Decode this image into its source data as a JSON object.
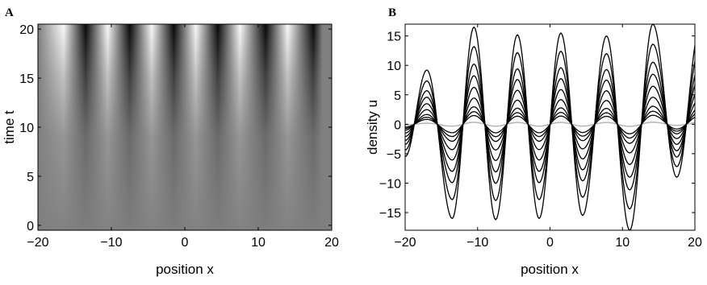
{
  "chart_data": [
    {
      "panel": "A",
      "type": "heatmap",
      "title": "",
      "xlabel": "position x",
      "ylabel": "time t",
      "xlim": [
        -20,
        20
      ],
      "ylim": [
        -0.5,
        20.5
      ],
      "xticks": [
        -20,
        -10,
        0,
        10,
        20
      ],
      "yticks": [
        0,
        5,
        10,
        15,
        20
      ],
      "xtick_labels": [
        "−20",
        "−10",
        "0",
        "10",
        "20"
      ],
      "ytick_labels": [
        "0",
        "5",
        "10",
        "15",
        "20"
      ],
      "colormap": "gray",
      "field": {
        "x_start": -20,
        "x_end": 20,
        "t_start": -0.5,
        "t_end": 20.5,
        "peaks_x": [
          -16.5,
          -10.5,
          -4.5,
          1.5,
          7.5,
          14.0
        ],
        "troughs_x": [
          -13.5,
          -7.5,
          -1.5,
          4.5,
          11.0,
          17.5
        ],
        "max_amplitude": 16
      }
    },
    {
      "panel": "B",
      "type": "line",
      "title": "",
      "xlabel": "position x",
      "ylabel": "density u",
      "xlim": [
        -20,
        20
      ],
      "ylim": [
        -18,
        17
      ],
      "xticks": [
        -20,
        -10,
        0,
        10,
        20
      ],
      "yticks": [
        -15,
        -10,
        -5,
        0,
        5,
        10,
        15
      ],
      "xtick_labels": [
        "−20",
        "−10",
        "0",
        "10",
        "20"
      ],
      "ytick_labels": [
        "−15",
        "−10",
        "−5",
        "0",
        "5",
        "10",
        "15"
      ],
      "grid": false,
      "initial_color": "#b0b0b0",
      "line_color": "#000000",
      "peaks": [
        {
          "x": -17.0,
          "y": 9.2
        },
        {
          "x": -10.5,
          "y": 16.5
        },
        {
          "x": -4.5,
          "y": 15.2
        },
        {
          "x": 1.5,
          "y": 15.5
        },
        {
          "x": 7.8,
          "y": 15.0
        },
        {
          "x": 14.2,
          "y": 17.0
        }
      ],
      "troughs": [
        {
          "x": -20.0,
          "y": -5.5
        },
        {
          "x": -13.5,
          "y": -16.0
        },
        {
          "x": -7.5,
          "y": -16.2
        },
        {
          "x": -1.5,
          "y": -16.0
        },
        {
          "x": 4.5,
          "y": -15.5
        },
        {
          "x": 11.0,
          "y": -18.0
        },
        {
          "x": 17.5,
          "y": -9.0
        }
      ],
      "series_scales": [
        0.02,
        0.09,
        0.13,
        0.18,
        0.27,
        0.38,
        0.5,
        0.62,
        0.8,
        1.0
      ]
    }
  ]
}
